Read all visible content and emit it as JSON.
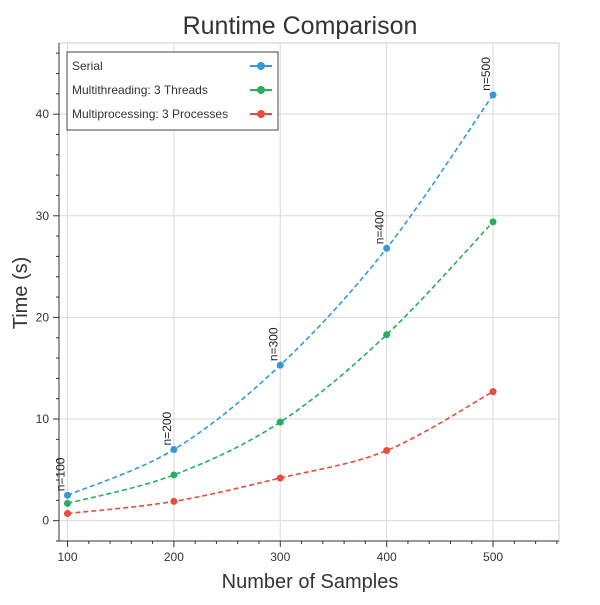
{
  "chart_data": {
    "type": "line",
    "title": "Runtime Comparison",
    "xlabel": "Number of Samples",
    "ylabel": "Time (s)",
    "xlim": [
      92,
      562
    ],
    "ylim": [
      -2,
      47
    ],
    "x_ticks": [
      100,
      200,
      300,
      400,
      500
    ],
    "y_ticks": [
      0,
      10,
      20,
      30,
      40
    ],
    "x_tick_labels": [
      "100",
      "200",
      "300",
      "400",
      "500"
    ],
    "y_tick_labels": [
      "0",
      "10",
      "20",
      "30",
      "40"
    ],
    "grid": true,
    "legend_position": "top-left",
    "x": [
      100,
      200,
      300,
      400,
      500
    ],
    "series": [
      {
        "name": "Serial",
        "color": "#3498db",
        "values": [
          2.5,
          7.0,
          15.3,
          26.8,
          41.9
        ]
      },
      {
        "name": "Multithreading: 3 Threads",
        "color": "#27ae60",
        "values": [
          1.7,
          4.5,
          9.7,
          18.3,
          29.4
        ]
      },
      {
        "name": "Multiprocessing: 3 Processes",
        "color": "#e74c3c",
        "values": [
          0.7,
          1.9,
          4.2,
          6.9,
          12.7
        ]
      }
    ],
    "annotations": [
      {
        "text": "n=100",
        "x": 100,
        "y": 2.5
      },
      {
        "text": "n=200",
        "x": 200,
        "y": 7.0
      },
      {
        "text": "n=300",
        "x": 300,
        "y": 15.3
      },
      {
        "text": "n=400",
        "x": 400,
        "y": 26.8
      },
      {
        "text": "n=500",
        "x": 500,
        "y": 41.9
      }
    ]
  }
}
